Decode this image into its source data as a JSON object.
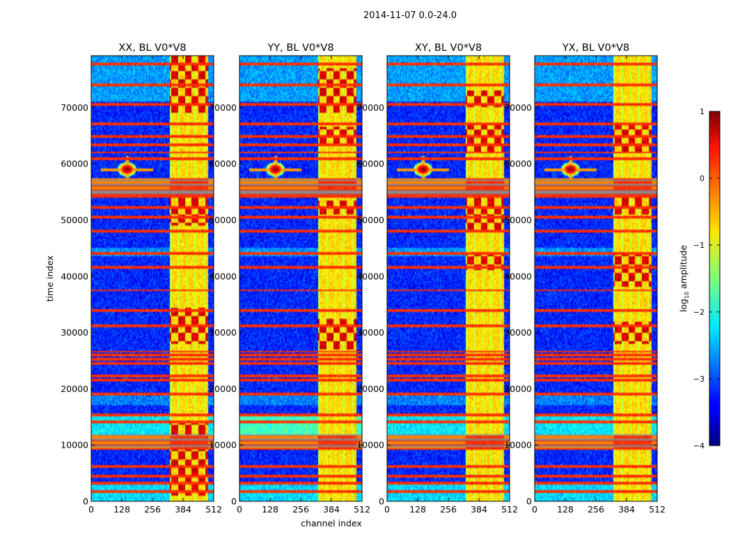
{
  "suptitle": "2014-11-07 0.0-24.0",
  "chart_data": {
    "type": "heatmap",
    "panels": [
      {
        "title": "XX, BL V0*V8",
        "variant": 0
      },
      {
        "title": "YY, BL V0*V8",
        "variant": 1
      },
      {
        "title": "XY, BL V0*V8",
        "variant": 2
      },
      {
        "title": "YX, BL V0*V8",
        "variant": 3
      }
    ],
    "xlabel": "channel index",
    "ylabel": "time index",
    "xlim": [
      0,
      512
    ],
    "ylim": [
      0,
      79200
    ],
    "xticks": [
      0,
      128,
      256,
      384,
      512
    ],
    "yticks": [
      0,
      10000,
      20000,
      30000,
      40000,
      50000,
      60000,
      70000
    ],
    "colorbar": {
      "label": "log10 amplitude",
      "label_base": "log",
      "label_sub": "10",
      "label_tail": " amplitude",
      "vmin": -4,
      "vmax": 1,
      "ticks": [
        {
          "value": 1,
          "label": "1"
        },
        {
          "value": 0,
          "label": "0"
        },
        {
          "value": -1,
          "label": "−1"
        },
        {
          "value": -2,
          "label": "−2"
        },
        {
          "value": -3,
          "label": "−3"
        },
        {
          "value": -4,
          "label": "−4"
        }
      ],
      "colormap": "jet"
    },
    "features": {
      "bright_channel_band": [
        330,
        490
      ],
      "rfi_time_bands": [
        1800,
        3200,
        4500,
        6200,
        9500,
        10500,
        11500,
        14000,
        15300,
        19000,
        21500,
        22300,
        24500,
        25200,
        25900,
        26600,
        31300,
        34000,
        37500,
        41600,
        44000,
        48000,
        50600,
        52300,
        54300,
        55800,
        56600,
        57300,
        61000,
        62000,
        63400,
        64800,
        67000,
        70500,
        74000,
        77800
      ],
      "gray_flag_blocks": [
        [
          9400,
          11800
        ],
        [
          54500,
          57400
        ]
      ],
      "point_source": {
        "channel": 150,
        "time": 59000
      }
    }
  }
}
